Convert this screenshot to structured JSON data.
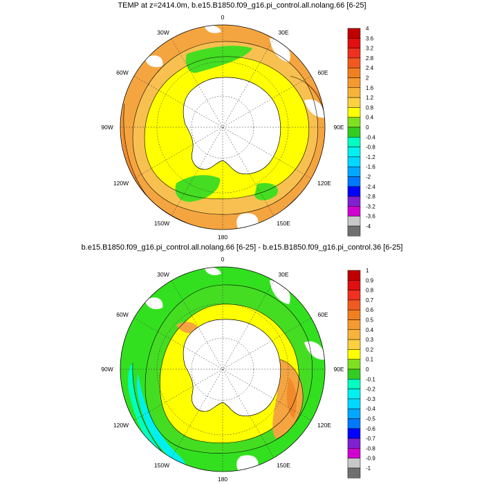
{
  "panels": [
    {
      "title": "TEMP at z=2414.0m, b.e15.B1850.f09_g16.pi_control.all.nolang.66 [6-25]",
      "lon_labels": [
        "0",
        "30E",
        "60E",
        "90E",
        "120E",
        "150E",
        "180",
        "150W",
        "120W",
        "90W",
        "60W",
        "30W"
      ],
      "colorbar_labels": [
        "4",
        "3.6",
        "3.2",
        "2.8",
        "2.4",
        "2",
        "1.6",
        "1.2",
        "0.8",
        "0.4",
        "0",
        "-0.4",
        "-0.8",
        "-1.2",
        "-1.6",
        "-2",
        "-2.4",
        "-2.8",
        "-3.2",
        "-3.6",
        "-4"
      ],
      "colorbar_colors": [
        "#c00000",
        "#e01010",
        "#f03020",
        "#f05a20",
        "#f07f20",
        "#f59a30",
        "#f8b43a",
        "#fcd040",
        "#ffff00",
        "#7fe020",
        "#33cc22",
        "#00ffc0",
        "#00f0f0",
        "#00d8ff",
        "#00a8ff",
        "#0078ff",
        "#0000ff",
        "#8020d0",
        "#d000d0",
        "#c8c8c8",
        "#707070"
      ]
    },
    {
      "title": "b.e15.B1850.f09_g16.pi_control.all.nolang.66 [6-25] - b.e15.B1850.f09_g16.pi_control.36 [6-25]",
      "lon_labels": [
        "0",
        "30E",
        "60E",
        "90E",
        "120E",
        "150E",
        "180",
        "150W",
        "120W",
        "90W",
        "60W",
        "30W"
      ],
      "colorbar_labels": [
        "1",
        "0.9",
        "0.8",
        "0.7",
        "0.6",
        "0.5",
        "0.4",
        "0.3",
        "0.2",
        "0.1",
        "0",
        "-0.1",
        "-0.2",
        "-0.3",
        "-0.4",
        "-0.5",
        "-0.6",
        "-0.7",
        "-0.8",
        "-0.9",
        "-1"
      ],
      "colorbar_colors": [
        "#c00000",
        "#e01010",
        "#f03020",
        "#f05a20",
        "#f07f20",
        "#f59a30",
        "#f8b43a",
        "#fcd040",
        "#ffff00",
        "#7fe020",
        "#33cc22",
        "#00ffc0",
        "#00f0f0",
        "#00d8ff",
        "#00a8ff",
        "#0078ff",
        "#0000ff",
        "#8020d0",
        "#d000d0",
        "#c8c8c8",
        "#707070"
      ]
    }
  ],
  "colors": {
    "orange": "#f5a540",
    "dark_orange": "#f08a2a",
    "light_orange": "#f8c050",
    "yellow": "#ffff00",
    "green": "#44dd22",
    "bright_green": "#33e020",
    "cyan": "#00ffc0",
    "land": "#ffffff"
  }
}
